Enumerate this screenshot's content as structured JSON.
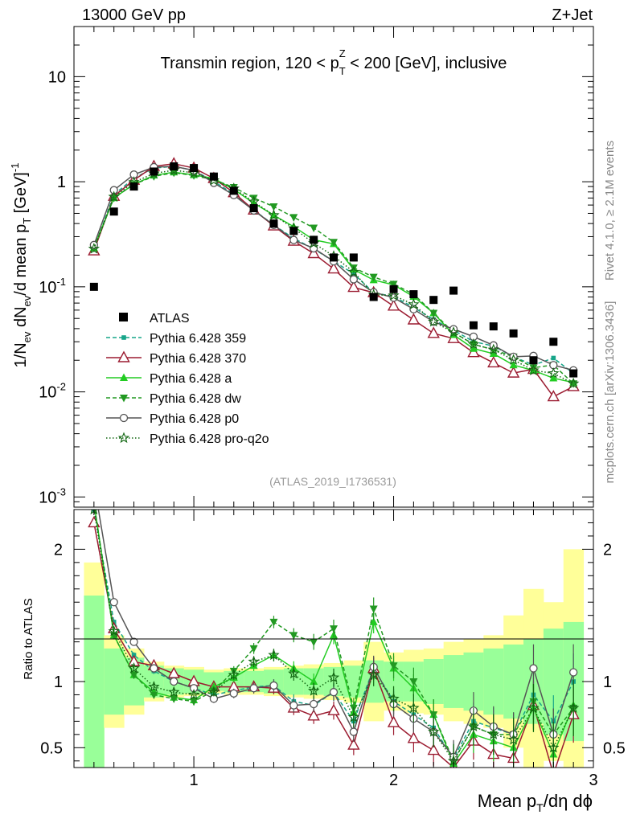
{
  "header": {
    "left": "13000 GeV pp",
    "right": "Z+Jet"
  },
  "side": {
    "rivet": "Rivet 4.1.0, ≥ 2.1M events",
    "mcplots": "mcplots.cern.ch [arXiv:1306.3436]"
  },
  "labels": {
    "analysis": "(ATLAS_2019_I1736531)",
    "title_a": "Transmin region, 120 < p",
    "title_sup": "Z",
    "title_sub": "T",
    "title_b": " < 200 [GeV], inclusive",
    "ylabel_main": "1/N_ev dN_ev/d mean p_T [GeV]^-1",
    "ylabel_ratio": "Ratio to ATLAS",
    "xlabel": "Mean p_T/dη dϕ"
  },
  "chart_data": {
    "type": "scatter",
    "x": [
      0.5,
      0.6,
      0.7,
      0.8,
      0.9,
      1.0,
      1.1,
      1.2,
      1.3,
      1.4,
      1.5,
      1.6,
      1.7,
      1.8,
      1.9,
      2.0,
      2.1,
      2.2,
      2.3,
      2.4,
      2.5,
      2.6,
      2.7,
      2.8,
      2.9
    ],
    "xlim": [
      0.4,
      3.0
    ],
    "xticks": [
      1,
      2,
      3
    ],
    "xtick_labels": [
      "1",
      "2",
      "3"
    ],
    "ylim_main": [
      0.0008,
      30
    ],
    "yticks_main": [
      0.001,
      0.01,
      0.1,
      1,
      10
    ],
    "ytick_labels_main": [
      "10^-3",
      "10^-2",
      "10^-1",
      "1",
      "10"
    ],
    "ylim_ratio": [
      0.35,
      2.3
    ],
    "yticks_ratio": [
      0.5,
      1,
      2
    ],
    "ytick_labels_ratio": [
      "0.5",
      "1",
      "2"
    ],
    "data": {
      "name": "ATLAS",
      "values": [
        0.1,
        0.52,
        0.9,
        1.25,
        1.4,
        1.35,
        1.12,
        0.82,
        0.56,
        0.4,
        0.34,
        0.28,
        0.19,
        0.19,
        0.08,
        0.095,
        0.085,
        0.075,
        0.092,
        0.043,
        0.042,
        0.036,
        0.02,
        0.03,
        0.015
      ]
    },
    "band_green": [
      0.65,
      0.25,
      0.18,
      0.12,
      0.1,
      0.09,
      0.07,
      0.08,
      0.08,
      0.09,
      0.1,
      0.1,
      0.11,
      0.12,
      0.16,
      0.15,
      0.15,
      0.17,
      0.2,
      0.22,
      0.25,
      0.28,
      0.32,
      0.4,
      0.45
    ],
    "band_yellow": [
      0.9,
      0.35,
      0.25,
      0.15,
      0.12,
      0.11,
      0.09,
      0.1,
      0.1,
      0.11,
      0.12,
      0.13,
      0.14,
      0.16,
      0.3,
      0.22,
      0.24,
      0.25,
      0.3,
      0.32,
      0.35,
      0.5,
      0.7,
      0.6,
      1.0
    ],
    "series": [
      {
        "name": "Pythia 6.428 359",
        "color": "#17a589",
        "dash": "5,3",
        "marker": "square-small",
        "ratio": [
          2.3,
          1.45,
          1.2,
          1.08,
          1.0,
          0.95,
          0.9,
          0.93,
          0.96,
          0.97,
          0.85,
          0.82,
          0.92,
          0.7,
          1.1,
          0.85,
          0.75,
          0.65,
          0.42,
          0.7,
          0.65,
          0.6,
          0.9,
          0.7,
          1.0
        ]
      },
      {
        "name": "Pythia 6.428 370",
        "color": "#9b1b30",
        "dash": "",
        "marker": "triangle-open",
        "ratio": [
          2.2,
          1.4,
          1.15,
          1.12,
          1.06,
          1.0,
          0.96,
          0.96,
          0.96,
          0.95,
          0.8,
          0.74,
          0.78,
          0.52,
          1.1,
          0.69,
          0.57,
          0.48,
          0.35,
          0.55,
          0.45,
          0.42,
          0.82,
          0.3,
          0.75
        ]
      },
      {
        "name": "Pythia 6.428 a",
        "color": "#22cc22",
        "dash": "",
        "marker": "triangle-up",
        "ratio": [
          2.35,
          1.35,
          1.05,
          0.92,
          0.88,
          0.86,
          0.96,
          1.03,
          1.12,
          1.2,
          1.1,
          1.0,
          1.35,
          0.77,
          1.45,
          1.1,
          0.95,
          0.75,
          0.38,
          0.6,
          0.55,
          0.5,
          0.8,
          0.45,
          0.82
        ]
      },
      {
        "name": "Pythia 6.428 dw",
        "color": "#229922",
        "dash": "5,3",
        "marker": "triangle-down",
        "ratio": [
          2.35,
          1.35,
          1.05,
          0.9,
          0.87,
          0.85,
          0.93,
          1.08,
          1.25,
          1.45,
          1.35,
          1.3,
          1.4,
          0.8,
          1.55,
          1.12,
          1.0,
          0.75,
          0.4,
          0.66,
          0.6,
          0.6,
          0.85,
          0.6,
          0.8
        ]
      },
      {
        "name": "Pythia 6.428 p0",
        "color": "#555555",
        "dash": "",
        "marker": "circle-open",
        "ratio": [
          2.5,
          1.6,
          1.3,
          1.1,
          1.0,
          0.95,
          0.87,
          0.91,
          0.95,
          0.97,
          0.82,
          0.83,
          0.92,
          0.62,
          1.11,
          0.83,
          0.72,
          0.62,
          0.43,
          0.78,
          0.66,
          0.6,
          1.1,
          0.6,
          1.07
        ]
      },
      {
        "name": "Pythia 6.428 pro-q2o",
        "color": "#116611",
        "dash": "1.5,2.5",
        "marker": "star-open",
        "ratio": [
          2.3,
          1.38,
          1.1,
          0.96,
          0.92,
          0.9,
          0.92,
          1.05,
          1.15,
          1.2,
          1.06,
          0.93,
          1.03,
          0.73,
          1.05,
          0.87,
          0.8,
          0.62,
          0.4,
          0.66,
          0.6,
          0.56,
          0.8,
          0.5,
          0.8
        ]
      }
    ]
  }
}
